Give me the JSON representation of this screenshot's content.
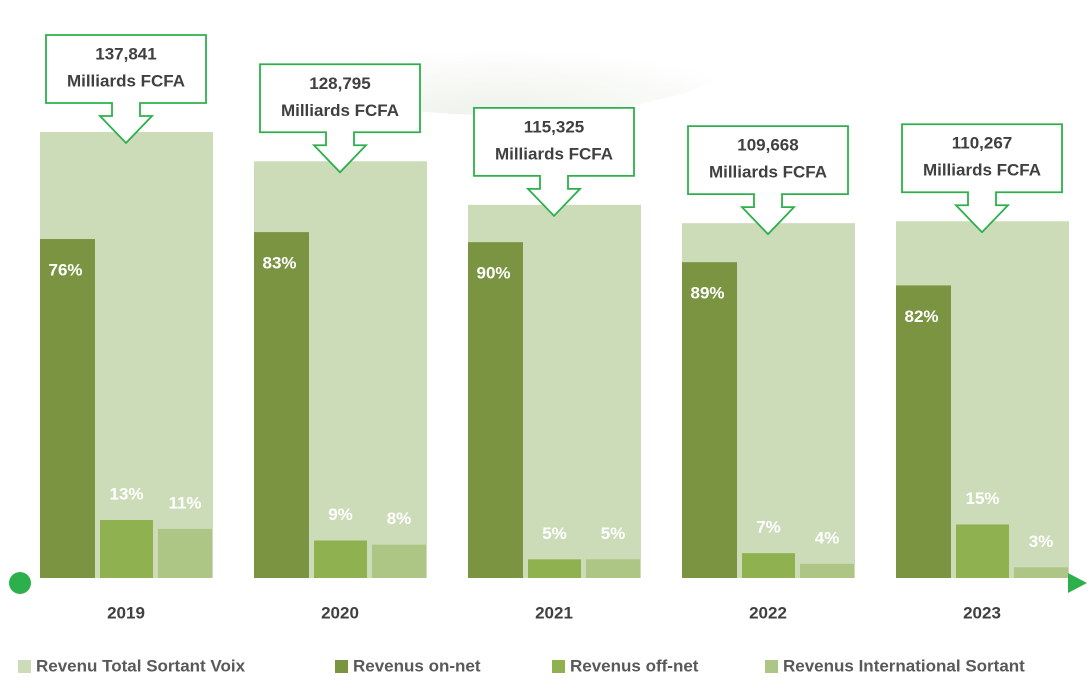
{
  "chart_data": {
    "type": "bar",
    "categories": [
      "2019",
      "2020",
      "2021",
      "2022",
      "2023"
    ],
    "total": {
      "name": "Revenu Total Sortant Voix",
      "color": "#cddcb8",
      "values": [
        137.841,
        128.795,
        115.325,
        109.668,
        110.267
      ],
      "value_labels": [
        "137,841",
        "128,795",
        "115,325",
        "109,668",
        "110,267"
      ],
      "unit": "Milliards FCFA"
    },
    "series": [
      {
        "name": "Revenus on-net",
        "color": "#7a9442",
        "values": [
          76,
          83,
          90,
          89,
          82
        ],
        "value_labels": [
          "76%",
          "83%",
          "90%",
          "89%",
          "82%"
        ]
      },
      {
        "name": "Revenus off-net",
        "color": "#8fb150",
        "values": [
          13,
          9,
          5,
          7,
          15
        ],
        "value_labels": [
          "13%",
          "9%",
          "5%",
          "7%",
          "15%"
        ]
      },
      {
        "name": "Revenus International Sortant",
        "color": "#adc585",
        "values": [
          11,
          8,
          5,
          4,
          3
        ],
        "value_labels": [
          "11%",
          "8%",
          "5%",
          "4%",
          "3%"
        ]
      }
    ],
    "legend": "bottom"
  }
}
